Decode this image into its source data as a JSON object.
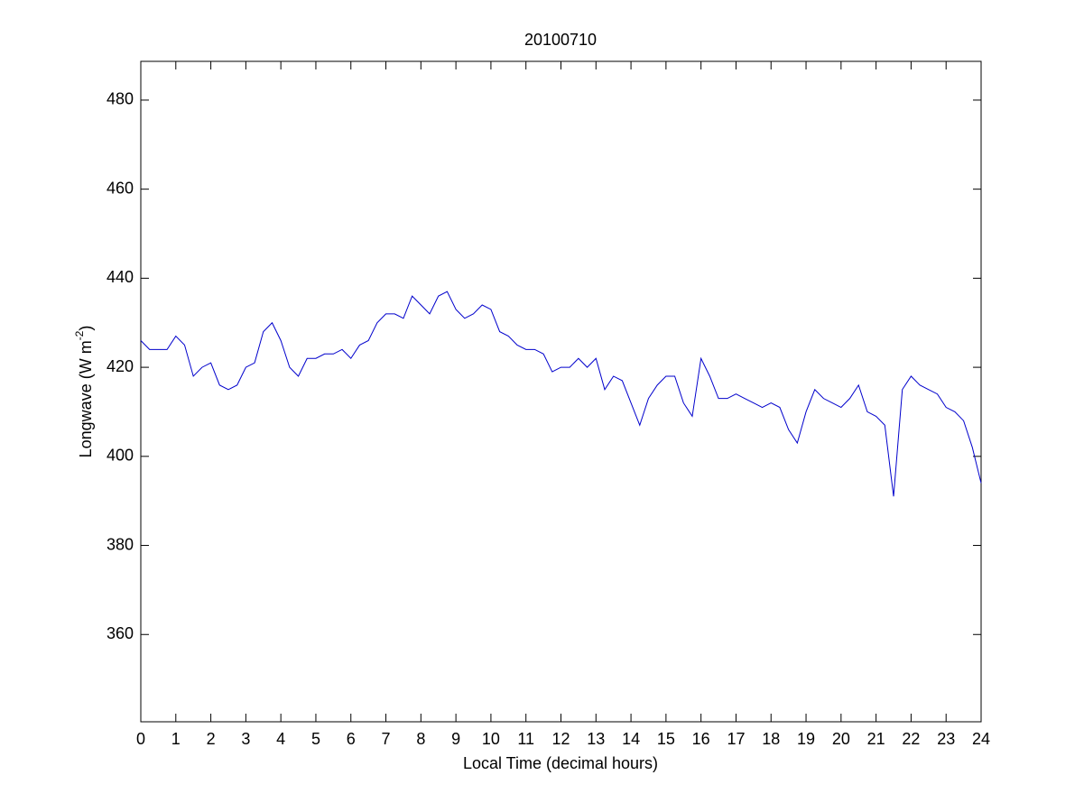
{
  "chart_data": {
    "type": "line",
    "title": "20100710",
    "x_label": "Local Time (decimal hours)",
    "y_label": [
      "Longwave (W m",
      "-2",
      ")"
    ],
    "x": [
      0,
      0.25,
      0.5,
      0.75,
      1,
      1.25,
      1.5,
      1.75,
      2,
      2.25,
      2.5,
      2.75,
      3,
      3.25,
      3.5,
      3.75,
      4,
      4.25,
      4.5,
      4.75,
      5,
      5.25,
      5.5,
      5.75,
      6,
      6.25,
      6.5,
      6.75,
      7,
      7.25,
      7.5,
      7.75,
      8,
      8.25,
      8.5,
      8.75,
      9,
      9.25,
      9.5,
      9.75,
      10,
      10.25,
      10.5,
      10.75,
      11,
      11.25,
      11.5,
      11.75,
      12,
      12.25,
      12.5,
      12.75,
      13,
      13.25,
      13.5,
      13.75,
      14,
      14.25,
      14.5,
      14.75,
      15,
      15.25,
      15.5,
      15.75,
      16,
      16.25,
      16.5,
      16.75,
      17,
      17.25,
      17.5,
      17.75,
      18,
      18.25,
      18.5,
      18.75,
      19,
      19.25,
      19.5,
      19.75,
      20,
      20.25,
      20.5,
      20.75,
      21,
      21.25,
      21.5,
      21.75,
      22,
      22.25,
      22.5,
      22.75,
      23,
      23.25,
      23.5,
      23.75,
      24
    ],
    "series": [
      {
        "color": "#0000cc",
        "values": [
          426,
          424,
          424,
          424,
          427,
          425,
          418,
          420,
          421,
          416,
          415,
          416,
          420,
          421,
          428,
          430,
          426,
          420,
          418,
          422,
          422,
          423,
          423,
          424,
          422,
          425,
          426,
          430,
          432,
          432,
          431,
          436,
          434,
          432,
          436,
          437,
          433,
          431,
          432,
          434,
          433,
          428,
          427,
          425,
          424,
          424,
          423,
          419,
          420,
          420,
          422,
          420,
          422,
          415,
          418,
          417,
          412,
          407,
          413,
          416,
          418,
          418,
          412,
          409,
          422,
          418,
          413,
          413,
          414,
          413,
          412,
          411,
          412,
          411,
          406,
          403,
          410,
          415,
          413,
          412,
          411,
          413,
          416,
          410,
          409,
          407,
          391,
          415,
          418,
          416,
          415,
          414,
          411,
          410,
          408,
          402,
          394
        ]
      }
    ],
    "xlim": [
      0,
      24
    ],
    "xticks": [
      0,
      1,
      2,
      3,
      4,
      5,
      6,
      7,
      8,
      9,
      10,
      11,
      12,
      13,
      14,
      15,
      16,
      17,
      18,
      19,
      20,
      21,
      22,
      23,
      24
    ],
    "ylim": [
      340.4,
      488.7
    ],
    "yticks": [
      360,
      380,
      400,
      420,
      440,
      460,
      480
    ]
  }
}
